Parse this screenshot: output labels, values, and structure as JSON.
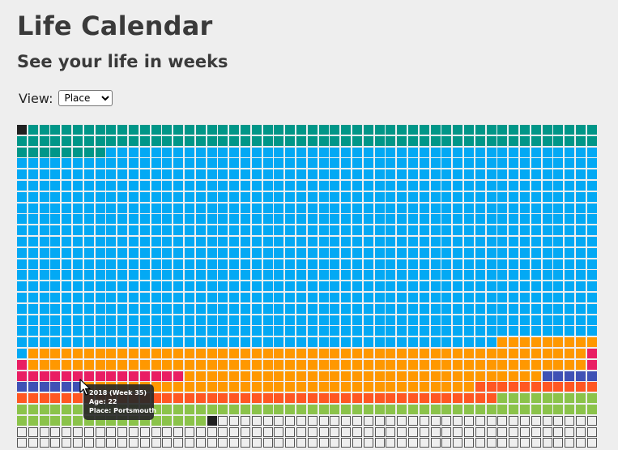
{
  "header": {
    "title": "Life Calendar",
    "subtitle": "See your life in weeks"
  },
  "view": {
    "label": "View:",
    "selected": "Place",
    "options": [
      "Place"
    ]
  },
  "colors": {
    "teal": "#009688",
    "blue": "#03a9f4",
    "orange": "#ff9800",
    "pink": "#e91e63",
    "indigo": "#3f51b5",
    "deep_orange": "#ff5722",
    "green": "#8bc34a",
    "current": "#212121"
  },
  "calendar": {
    "weeks_per_row": 52,
    "rows_visible": 29,
    "runs": [
      {
        "color": "current",
        "count": 1
      },
      {
        "color": "teal",
        "count": 111
      },
      {
        "color": "blue",
        "count": 919
      },
      {
        "color": "orange",
        "count": 9
      },
      {
        "color": "blue",
        "count": 1
      },
      {
        "color": "orange",
        "count": 50
      },
      {
        "color": "pink",
        "count": 2
      },
      {
        "color": "orange",
        "count": 50
      },
      {
        "color": "pink",
        "count": 16
      },
      {
        "color": "orange",
        "count": 32
      },
      {
        "color": "indigo",
        "count": 11
      },
      {
        "color": "orange",
        "count": 35
      },
      {
        "color": "deep_orange",
        "count": 54
      },
      {
        "color": "green",
        "count": 78
      },
      {
        "color": "current",
        "count": 1
      },
      {
        "color": "empty",
        "count": 138
      }
    ]
  },
  "tooltip": {
    "line1": "2018 (Week 35)",
    "line2": "Age: 22",
    "line3": "Place: Portsmouth"
  }
}
